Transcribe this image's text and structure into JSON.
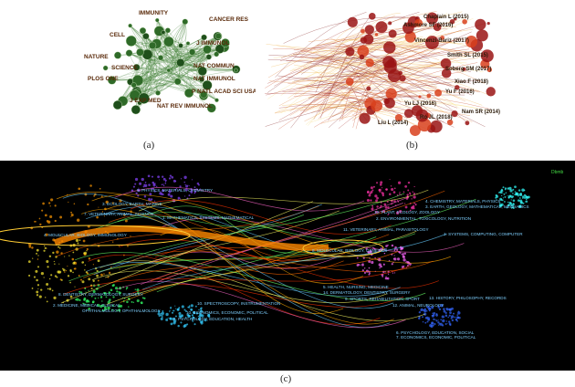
{
  "captions": {
    "a": "(a)",
    "b": "(b)",
    "c": "(c)"
  },
  "panel_a": {
    "labels": [
      "IMMUNITY",
      "CANCER RES",
      "J IMMUNOL",
      "NAT COMMUN",
      "NAT IMMUNOL",
      "P NATL ACAD SCI USA",
      "NAT REV IMMUNOL",
      "J EXP MED",
      "NATURE",
      "CELL",
      "SCIENCE",
      "PLOS ONE"
    ]
  },
  "panel_b": {
    "labels": [
      "Chaplain L (2015)",
      "Ashmore SF (2016)",
      "Vincenzi-Bariz (2017)",
      "Smith SL (2015)",
      "Soberg SM (2017)",
      "Xiao F (2018)",
      "Yu F (2016)",
      "Nam SR (2014)",
      "Yu LJ (2016)",
      "Ro JL (2018)",
      "Liu L (2014)"
    ]
  },
  "panel_c": {
    "corner": "Dbmb",
    "left_labels": [
      "5. PHYSICS, MATERIALS, CHEMISTRY",
      "3. ECOLOGY, EARTH, MARINE",
      "7. VETERINARY, ANIMAL, SCIENCE",
      "1. MATHEMATICS, SYSTEMS, MATHEMATICAL",
      "4. MOLECULAR, BIOLOGY, IMMUNOLOGY",
      "8. DENTISTRY, DERMATOLOGY, SURGERY",
      "2. MEDICINE, MEDICAL, CLINICAL",
      "OPHTHALMOLOGY, OPHTHALMOLOGY",
      "10. SPECTROSCOPY, INSTRUMENTATION",
      "10. ECONOMICS, ECONOMIC, POLITICAL",
      "6. PSYCHOLOGY, EDUCATION, HEALTH"
    ],
    "right_labels": [
      "4. CHEMISTRY, MATERIALS, PHYSICS",
      "3. EARTH, GEOLOGY, MATHEMATICAL, MECHANICS",
      "10. PLANT, ECOLOGY, ZOOLOGY",
      "2. ENVIRONMENTAL, TOXICOLOGY, NUTRITION",
      "11. VETERINARY, ANIMAL, PARASITOLOGY",
      "1. SYSTEMS, COMPUTING, COMPUTER",
      "8. MOLECULAR, BIOLOGY, GENETICS",
      "5. HEALTH, NURSING, MEDICINE",
      "14. DERMATOLOGY, DENTISTRY, SURGERY",
      "9. SPORTS, REHABILITATION, SPORT",
      "13. HISTORY, PHILOSOPHY, RECORDS",
      "12. ANIMAL, NEUROLOGY",
      "6. PSYCHOLOGY, EDUCATION, SOCIAL",
      "7. ECONOMICS, ECONOMIC, POLITICAL"
    ]
  }
}
